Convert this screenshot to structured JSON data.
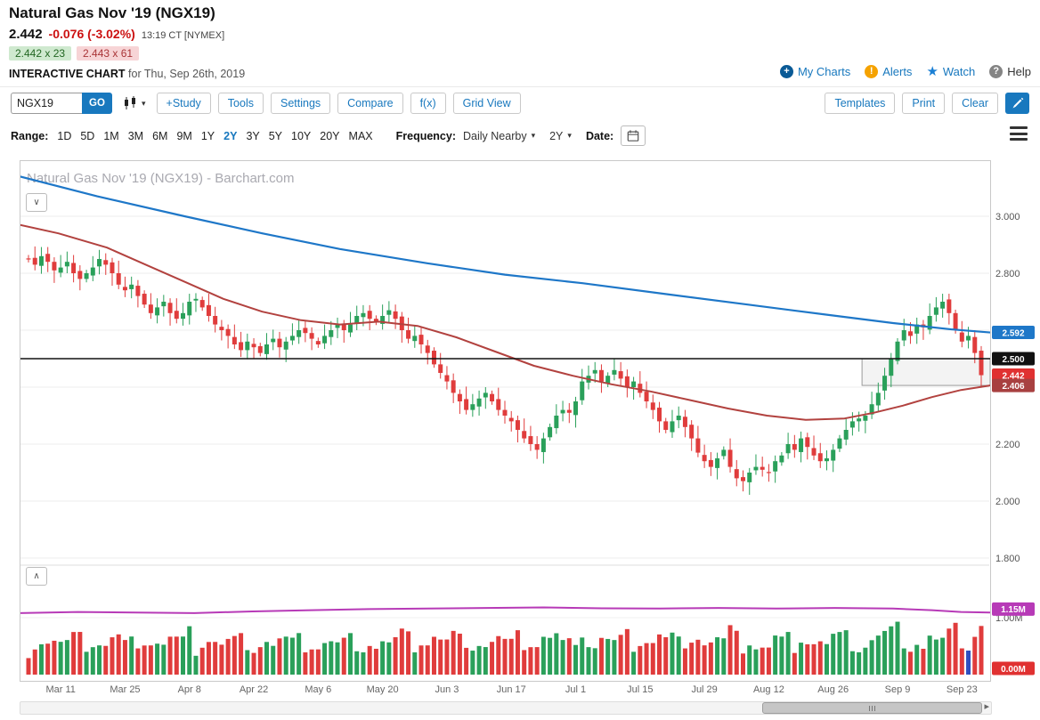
{
  "header": {
    "title": "Natural Gas Nov '19 (NGX19)",
    "last_price": "2.442",
    "change": "-0.076 (-3.02%)",
    "quote_time": "13:19 CT [NYMEX]",
    "bid_size": "2.442 x 23",
    "ask_size": "2.443 x 61",
    "chart_label": "INTERACTIVE CHART",
    "chart_date": "for Thu, Sep 26th, 2019",
    "links": {
      "my_charts": "My Charts",
      "alerts": "Alerts",
      "watch": "Watch",
      "help": "Help"
    }
  },
  "icons": {
    "my_charts": "plus-circle",
    "alerts": "alert-circle",
    "watch": "star",
    "help": "question-circle",
    "chart_type": "candlestick",
    "date": "calendar",
    "menu": "hamburger",
    "edit": "pencil",
    "pane_collapse": "chevron-down",
    "pane_expand": "chevron-up"
  },
  "toolbar": {
    "symbol_value": "NGX19",
    "go_label": "GO",
    "buttons": [
      "+Study",
      "Tools",
      "Settings",
      "Compare",
      "f(x)",
      "Grid View"
    ],
    "right_buttons": [
      "Templates",
      "Print",
      "Clear"
    ]
  },
  "controls": {
    "range_label": "Range:",
    "ranges": [
      "1D",
      "5D",
      "1M",
      "3M",
      "6M",
      "9M",
      "1Y",
      "2Y",
      "3Y",
      "5Y",
      "10Y",
      "20Y",
      "MAX"
    ],
    "selected_range": "2Y",
    "frequency_label": "Frequency:",
    "frequency_value": "Daily Nearby",
    "period_value": "2Y",
    "date_label": "Date:"
  },
  "chart_data": {
    "type": "candlestick",
    "title": "Natural Gas Nov '19 (NGX19) - Barchart.com",
    "values_estimated_from_pixels": true,
    "x_labels": [
      "Mar 11",
      "Mar 25",
      "Apr 8",
      "Apr 22",
      "May 6",
      "May 20",
      "Jun 3",
      "Jun 17",
      "Jul 1",
      "Jul 15",
      "Jul 29",
      "Aug 12",
      "Aug 26",
      "Sep 9",
      "Sep 23"
    ],
    "label_start_index": 5,
    "label_every": 10,
    "y_ticks": [
      {
        "v": 3.0,
        "label": "3.000"
      },
      {
        "v": 2.8,
        "label": "2.800"
      },
      {
        "v": 2.6,
        "label": ""
      },
      {
        "v": 2.4,
        "label": ""
      },
      {
        "v": 2.2,
        "label": "2.200"
      },
      {
        "v": 2.0,
        "label": "2.000"
      },
      {
        "v": 1.8,
        "label": "1.800"
      }
    ],
    "price_axis_range": [
      1.775,
      3.197
    ],
    "closes": [
      2.85,
      2.83,
      2.86,
      2.84,
      2.81,
      2.82,
      2.84,
      2.8,
      2.78,
      2.8,
      2.82,
      2.85,
      2.83,
      2.8,
      2.76,
      2.74,
      2.76,
      2.72,
      2.69,
      2.66,
      2.68,
      2.7,
      2.66,
      2.64,
      2.66,
      2.7,
      2.71,
      2.68,
      2.65,
      2.62,
      2.6,
      2.58,
      2.55,
      2.53,
      2.56,
      2.54,
      2.52,
      2.55,
      2.57,
      2.54,
      2.56,
      2.58,
      2.6,
      2.59,
      2.57,
      2.55,
      2.58,
      2.6,
      2.62,
      2.6,
      2.62,
      2.65,
      2.66,
      2.64,
      2.63,
      2.65,
      2.67,
      2.64,
      2.6,
      2.57,
      2.58,
      2.55,
      2.52,
      2.48,
      2.45,
      2.42,
      2.38,
      2.35,
      2.32,
      2.34,
      2.36,
      2.38,
      2.35,
      2.32,
      2.3,
      2.28,
      2.25,
      2.22,
      2.2,
      2.18,
      2.22,
      2.26,
      2.3,
      2.32,
      2.31,
      2.35,
      2.42,
      2.44,
      2.46,
      2.42,
      2.44,
      2.46,
      2.43,
      2.4,
      2.42,
      2.38,
      2.35,
      2.32,
      2.28,
      2.25,
      2.28,
      2.3,
      2.26,
      2.22,
      2.17,
      2.14,
      2.12,
      2.15,
      2.18,
      2.12,
      2.08,
      2.07,
      2.1,
      2.12,
      2.11,
      2.1,
      2.14,
      2.16,
      2.2,
      2.18,
      2.22,
      2.19,
      2.16,
      2.14,
      2.15,
      2.18,
      2.22,
      2.25,
      2.28,
      2.29,
      2.3,
      2.34,
      2.38,
      2.44,
      2.5,
      2.56,
      2.6,
      2.58,
      2.62,
      2.61,
      2.65,
      2.68,
      2.7,
      2.66,
      2.6,
      2.56,
      2.58,
      2.52,
      2.442
    ],
    "ma_blue": [
      [
        0,
        3.14
      ],
      [
        0.08,
        3.07
      ],
      [
        0.17,
        3.0
      ],
      [
        0.25,
        2.94
      ],
      [
        0.33,
        2.885
      ],
      [
        0.42,
        2.835
      ],
      [
        0.5,
        2.795
      ],
      [
        0.58,
        2.765
      ],
      [
        0.67,
        2.725
      ],
      [
        0.75,
        2.69
      ],
      [
        0.83,
        2.655
      ],
      [
        0.9,
        2.625
      ],
      [
        0.96,
        2.603
      ],
      [
        1,
        2.592
      ]
    ],
    "ma_red": [
      [
        0,
        2.97
      ],
      [
        0.04,
        2.94
      ],
      [
        0.09,
        2.89
      ],
      [
        0.13,
        2.83
      ],
      [
        0.17,
        2.77
      ],
      [
        0.21,
        2.71
      ],
      [
        0.25,
        2.665
      ],
      [
        0.29,
        2.635
      ],
      [
        0.33,
        2.62
      ],
      [
        0.37,
        2.63
      ],
      [
        0.41,
        2.615
      ],
      [
        0.45,
        2.575
      ],
      [
        0.49,
        2.525
      ],
      [
        0.53,
        2.475
      ],
      [
        0.57,
        2.44
      ],
      [
        0.61,
        2.41
      ],
      [
        0.65,
        2.385
      ],
      [
        0.69,
        2.355
      ],
      [
        0.73,
        2.325
      ],
      [
        0.77,
        2.3
      ],
      [
        0.81,
        2.285
      ],
      [
        0.85,
        2.29
      ],
      [
        0.88,
        2.31
      ],
      [
        0.91,
        2.335
      ],
      [
        0.94,
        2.365
      ],
      [
        0.97,
        2.39
      ],
      [
        1,
        2.406
      ]
    ],
    "horizontal_line": 2.5,
    "annotation_box": {
      "x1_frac": 0.868,
      "x2_frac": 1.0,
      "price_top": 2.5,
      "price_bottom": 2.406
    },
    "price_badges": [
      {
        "v": 2.592,
        "label": "2.592",
        "color": "#1e77c8"
      },
      {
        "v": 2.5,
        "label": "2.500",
        "color": "#111111"
      },
      {
        "v": 2.442,
        "label": "2.442",
        "color": "#e03131"
      },
      {
        "v": 2.406,
        "label": "2.406",
        "color": "#a84040"
      }
    ],
    "lower_panel": {
      "line_points": [
        [
          0,
          1.08
        ],
        [
          0.06,
          1.1
        ],
        [
          0.12,
          1.09
        ],
        [
          0.18,
          1.08
        ],
        [
          0.24,
          1.11
        ],
        [
          0.3,
          1.13
        ],
        [
          0.36,
          1.15
        ],
        [
          0.42,
          1.16
        ],
        [
          0.48,
          1.17
        ],
        [
          0.54,
          1.18
        ],
        [
          0.6,
          1.165
        ],
        [
          0.66,
          1.16
        ],
        [
          0.72,
          1.17
        ],
        [
          0.78,
          1.16
        ],
        [
          0.84,
          1.17
        ],
        [
          0.9,
          1.16
        ],
        [
          0.94,
          1.13
        ],
        [
          0.97,
          1.1
        ],
        [
          1,
          1.09
        ]
      ],
      "line_color": "#b73ab7",
      "ticks": [
        {
          "v": 1.0,
          "label": "1.00M"
        }
      ],
      "badges": [
        {
          "v": 1.15,
          "label": "1.15M",
          "color": "#b73ab7"
        },
        {
          "v": 0.0,
          "label": "0.00M",
          "color": "#e03131"
        }
      ],
      "volume_note": "individual bar volumes are not labeled in the image; heights estimated"
    },
    "volume_highlight_index": 146,
    "colors": {
      "up": "#2aa05a",
      "down": "#e03c3c",
      "ma_blue": "#1e77c8",
      "ma_red": "#b2423f",
      "volume_highlight": "#2f4fc0",
      "horizontal_line": "#111111"
    }
  }
}
